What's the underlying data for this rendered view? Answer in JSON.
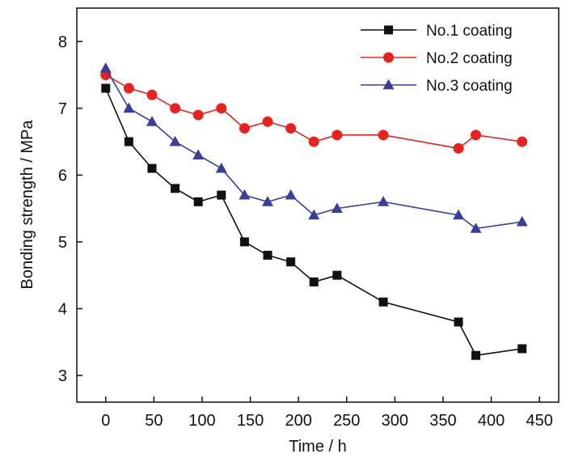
{
  "chart_data": {
    "type": "line",
    "title": "",
    "xlabel": "Time / h",
    "ylabel": "Bonding strength / MPa",
    "xlim": [
      -30,
      470
    ],
    "ylim": [
      2.6,
      8.5
    ],
    "xticks": [
      0,
      50,
      100,
      150,
      200,
      250,
      300,
      350,
      400,
      450
    ],
    "yticks": [
      3,
      4,
      5,
      6,
      7,
      8
    ],
    "grid": false,
    "legend_position": "top-right",
    "series": [
      {
        "name": "No.1 coating",
        "color": "#111111",
        "marker": "square",
        "x": [
          0,
          24,
          48,
          72,
          96,
          120,
          144,
          168,
          192,
          216,
          240,
          288,
          366,
          384,
          432
        ],
        "y": [
          7.3,
          6.5,
          6.1,
          5.8,
          5.6,
          5.7,
          5.0,
          4.8,
          4.7,
          4.4,
          4.5,
          4.1,
          3.8,
          3.3,
          3.4
        ]
      },
      {
        "name": "No.2 coating",
        "color": "#e8231f",
        "marker": "circle",
        "x": [
          0,
          24,
          48,
          72,
          96,
          120,
          144,
          168,
          192,
          216,
          240,
          288,
          366,
          384,
          432
        ],
        "y": [
          7.5,
          7.3,
          7.2,
          7.0,
          6.9,
          7.0,
          6.7,
          6.8,
          6.7,
          6.5,
          6.6,
          6.6,
          6.4,
          6.6,
          6.5
        ]
      },
      {
        "name": "No.3 coating",
        "color": "#3a3d9c",
        "marker": "triangle",
        "x": [
          0,
          24,
          48,
          72,
          96,
          120,
          144,
          168,
          192,
          216,
          240,
          288,
          366,
          384,
          432
        ],
        "y": [
          7.6,
          7.0,
          6.8,
          6.5,
          6.3,
          6.1,
          5.7,
          5.6,
          5.7,
          5.4,
          5.5,
          5.6,
          5.4,
          5.2,
          5.3
        ]
      }
    ]
  }
}
